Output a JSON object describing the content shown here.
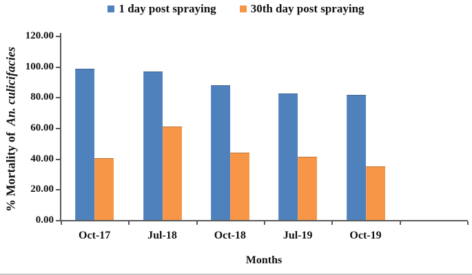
{
  "figure": {
    "background": "#ffffff",
    "axis_color": "#595959",
    "text_color": "#111111"
  },
  "chart_data": {
    "type": "bar",
    "title": "",
    "xlabel": "Months",
    "ylabel": "% Mortality of An. culicifacies",
    "ylabel_plain": "% Mortality of",
    "ylabel_italic": "An. culicifacies",
    "categories": [
      "Oct-17",
      "Jul-18",
      "Oct-18",
      "Jul-19",
      "Oct-19"
    ],
    "series": [
      {
        "name": "1 day post spraying",
        "color": "#4F81BD",
        "values": [
          98.5,
          96.8,
          87.6,
          82.2,
          81.6
        ]
      },
      {
        "name": "30th day post spraying",
        "color": "#F79646",
        "values": [
          40.5,
          61.0,
          44.0,
          41.2,
          35.0
        ]
      }
    ],
    "ylim": [
      0,
      120
    ],
    "ytick_step": 20,
    "ytick_labels": [
      "0.00",
      "20.00",
      "40.00",
      "60.00",
      "80.00",
      "100.00",
      "120.00"
    ],
    "grid": false,
    "legend_position": "top"
  }
}
